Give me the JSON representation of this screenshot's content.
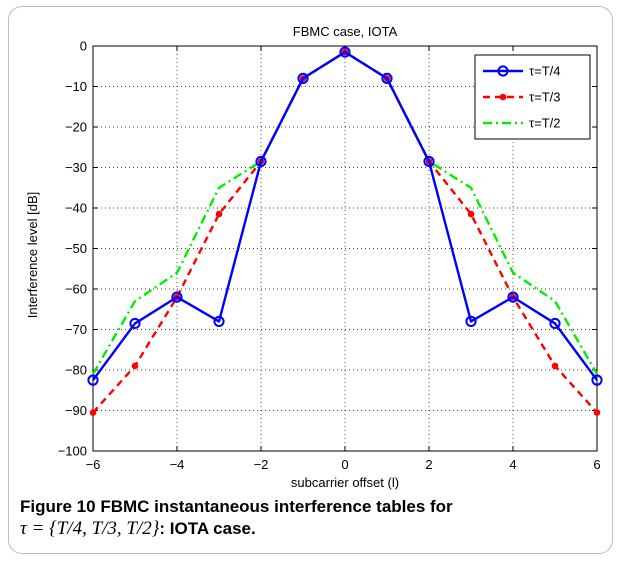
{
  "figure": {
    "caption_lead": "Figure 10",
    "caption_text": "FBMC instantaneous interference tables for",
    "caption_math": "τ = {T/4, T/3, T/2}",
    "caption_tail": ": IOTA case."
  },
  "chart_data": {
    "type": "line",
    "title": "FBMC case, IOTA",
    "xlabel": "subcarrier offset (l)",
    "ylabel": "Interference level [dB]",
    "xlim": [
      -6,
      6
    ],
    "ylim": [
      -100,
      0
    ],
    "xticks": [
      -6,
      -4,
      -2,
      0,
      2,
      4,
      6
    ],
    "yticks": [
      0,
      -10,
      -20,
      -30,
      -40,
      -50,
      -60,
      -70,
      -80,
      -90,
      -100
    ],
    "grid": true,
    "legend_position": "top-right",
    "x": [
      -6,
      -5,
      -4,
      -3,
      -2,
      -1,
      0,
      1,
      2,
      3,
      4,
      5,
      6
    ],
    "series": [
      {
        "name": "τ=T/4",
        "color": "#0000ff",
        "style": "solid-circles",
        "values": [
          -82.5,
          -68.5,
          -62,
          -68,
          -28.5,
          -8,
          -1.5,
          -8,
          -28.5,
          -68,
          -62,
          -68.5,
          -82.5
        ]
      },
      {
        "name": "τ=T/3",
        "color": "#ff0000",
        "style": "dashed-dots",
        "values": [
          -90.5,
          -79,
          -62,
          -41.5,
          -28.5,
          -8,
          -1.5,
          -8,
          -28.5,
          -41.5,
          -62,
          -79,
          -90.5
        ]
      },
      {
        "name": "τ=T/2",
        "color": "#00ee00",
        "style": "dashdot",
        "values": [
          -81,
          -63,
          -56,
          -35,
          -28.5,
          -8,
          -1.5,
          -8,
          -28.5,
          -35,
          -56,
          -63,
          -81
        ]
      }
    ]
  }
}
